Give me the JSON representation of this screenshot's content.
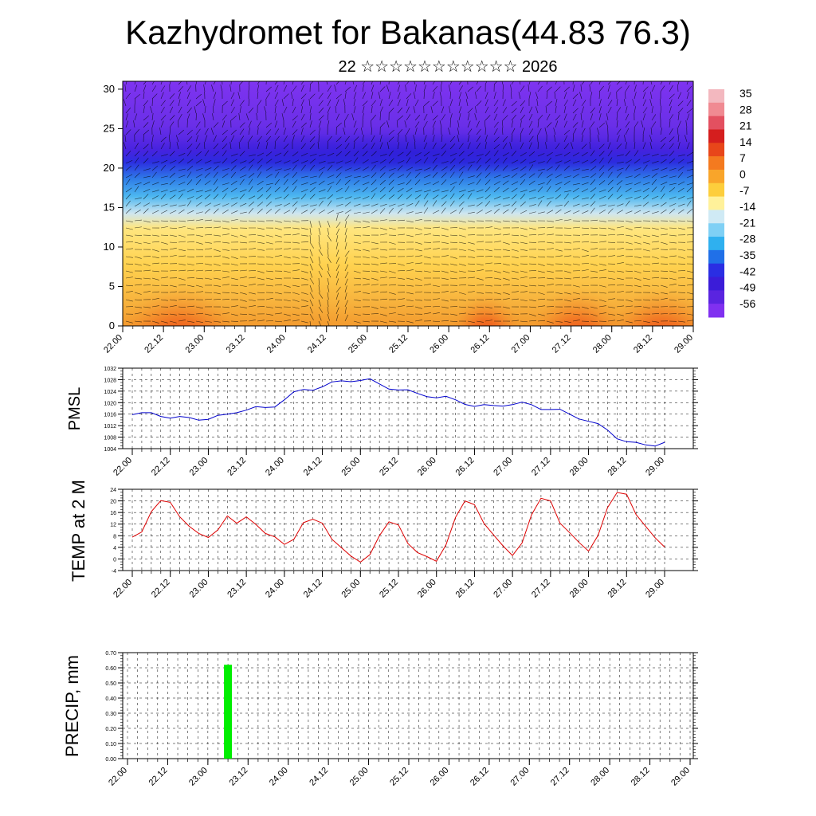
{
  "header": {
    "title": "Kazhydromet for Bakanas(44.83 76.3)",
    "subtitle": "22 ☆☆☆☆☆☆☆☆☆☆☆ 2026"
  },
  "chart_data": [
    {
      "type": "heatmap",
      "name": "temperature-wind-cross-section",
      "title": "",
      "x_tick_labels": [
        "22.00",
        "22.12",
        "23.00",
        "23.12",
        "24.00",
        "24.12",
        "25.00",
        "25.12",
        "26.00",
        "26.12",
        "27.00",
        "27.12",
        "28.00",
        "28.12",
        "29.00"
      ],
      "y_ticks": [
        0,
        5,
        10,
        15,
        20,
        25,
        30
      ],
      "ylim": [
        0,
        31
      ],
      "colorbar_labels": [
        "35",
        "28",
        "21",
        "14",
        "7",
        "0",
        "-7",
        "-14",
        "-21",
        "-28",
        "-35",
        "-42",
        "-49",
        "-56"
      ],
      "colors": {
        "hot": "#d71e0a",
        "warm": "#ff8c1a",
        "mild": "#ffd34d",
        "cold": "#30a0ff",
        "icy": "#3f1dd6",
        "strat": "#7d2ff0"
      }
    },
    {
      "type": "line",
      "name": "pmsl",
      "ylabel": "PMSL",
      "ylim": [
        1004,
        1032
      ],
      "y_ticks": [
        1004,
        1008,
        1012,
        1016,
        1020,
        1024,
        1028,
        1032
      ],
      "x_tick_labels": [
        "22.00",
        "22.12",
        "23.00",
        "23.12",
        "24.00",
        "24.12",
        "25.00",
        "25.12",
        "26.00",
        "26.12",
        "27.00",
        "27.12",
        "28.00",
        "28.12",
        "29.00"
      ],
      "color": "#0000cc",
      "values": [
        1015.8,
        1016.5,
        1016.5,
        1015.2,
        1014.6,
        1015.2,
        1014.8,
        1013.9,
        1014.2,
        1015.6,
        1016.0,
        1016.5,
        1017.4,
        1018.6,
        1018.3,
        1018.5,
        1021.0,
        1023.8,
        1024.6,
        1024.3,
        1025.5,
        1027.2,
        1027.6,
        1027.3,
        1027.7,
        1028.3,
        1026.5,
        1024.7,
        1024.4,
        1024.5,
        1023.2,
        1022.1,
        1021.7,
        1022.2,
        1021.0,
        1019.4,
        1018.7,
        1019.3,
        1019.0,
        1018.8,
        1019.3,
        1020.2,
        1019.3,
        1017.6,
        1017.6,
        1017.7,
        1016.0,
        1014.3,
        1013.5,
        1012.7,
        1010.5,
        1007.4,
        1006.4,
        1006.2,
        1005.3,
        1004.9,
        1006.2
      ]
    },
    {
      "type": "line",
      "name": "temp-2m",
      "ylabel": "TEMP at 2 M",
      "ylim": [
        -4,
        24
      ],
      "y_ticks": [
        -4,
        0,
        4,
        8,
        12,
        16,
        20,
        24
      ],
      "x_tick_labels": [
        "22.00",
        "22.12",
        "23.00",
        "23.12",
        "24.00",
        "24.12",
        "25.00",
        "25.12",
        "26.00",
        "26.12",
        "27.00",
        "27.12",
        "28.00",
        "28.12",
        "29.00"
      ],
      "color": "#dd0000",
      "values": [
        7.5,
        9.3,
        16.3,
        20.1,
        19.5,
        14.5,
        11.2,
        8.8,
        7.4,
        10.0,
        14.8,
        12.3,
        14.5,
        11.9,
        8.8,
        7.6,
        5.0,
        6.8,
        12.5,
        13.7,
        12.3,
        6.8,
        3.9,
        1.0,
        -1.1,
        1.5,
        8.0,
        12.8,
        11.7,
        5.3,
        2.2,
        0.8,
        -0.8,
        4.8,
        14.3,
        20.0,
        18.7,
        12.2,
        8.3,
        4.5,
        1.2,
        5.5,
        15.2,
        20.9,
        20.0,
        12.3,
        9.1,
        5.7,
        2.7,
        8.1,
        17.7,
        22.9,
        22.3,
        15.3,
        11.3,
        7.3,
        4.1
      ]
    },
    {
      "type": "bar",
      "name": "precip",
      "ylabel": "PRECIP, mm",
      "ylim": [
        0.0,
        0.7
      ],
      "y_tick_labels": [
        "0.00",
        "0.10",
        "0.20",
        "0.30",
        "0.40",
        "0.50",
        "0.60",
        "0.70"
      ],
      "x_tick_labels": [
        "22.00",
        "22.12",
        "23.00",
        "23.12",
        "24.00",
        "24.12",
        "25.00",
        "25.12",
        "26.00",
        "26.12",
        "27.00",
        "27.12",
        "28.00",
        "28.12",
        "29.00"
      ],
      "bar_color": "#00ee00",
      "bars": [
        {
          "at": "23.06",
          "value": 0.62
        }
      ]
    }
  ]
}
